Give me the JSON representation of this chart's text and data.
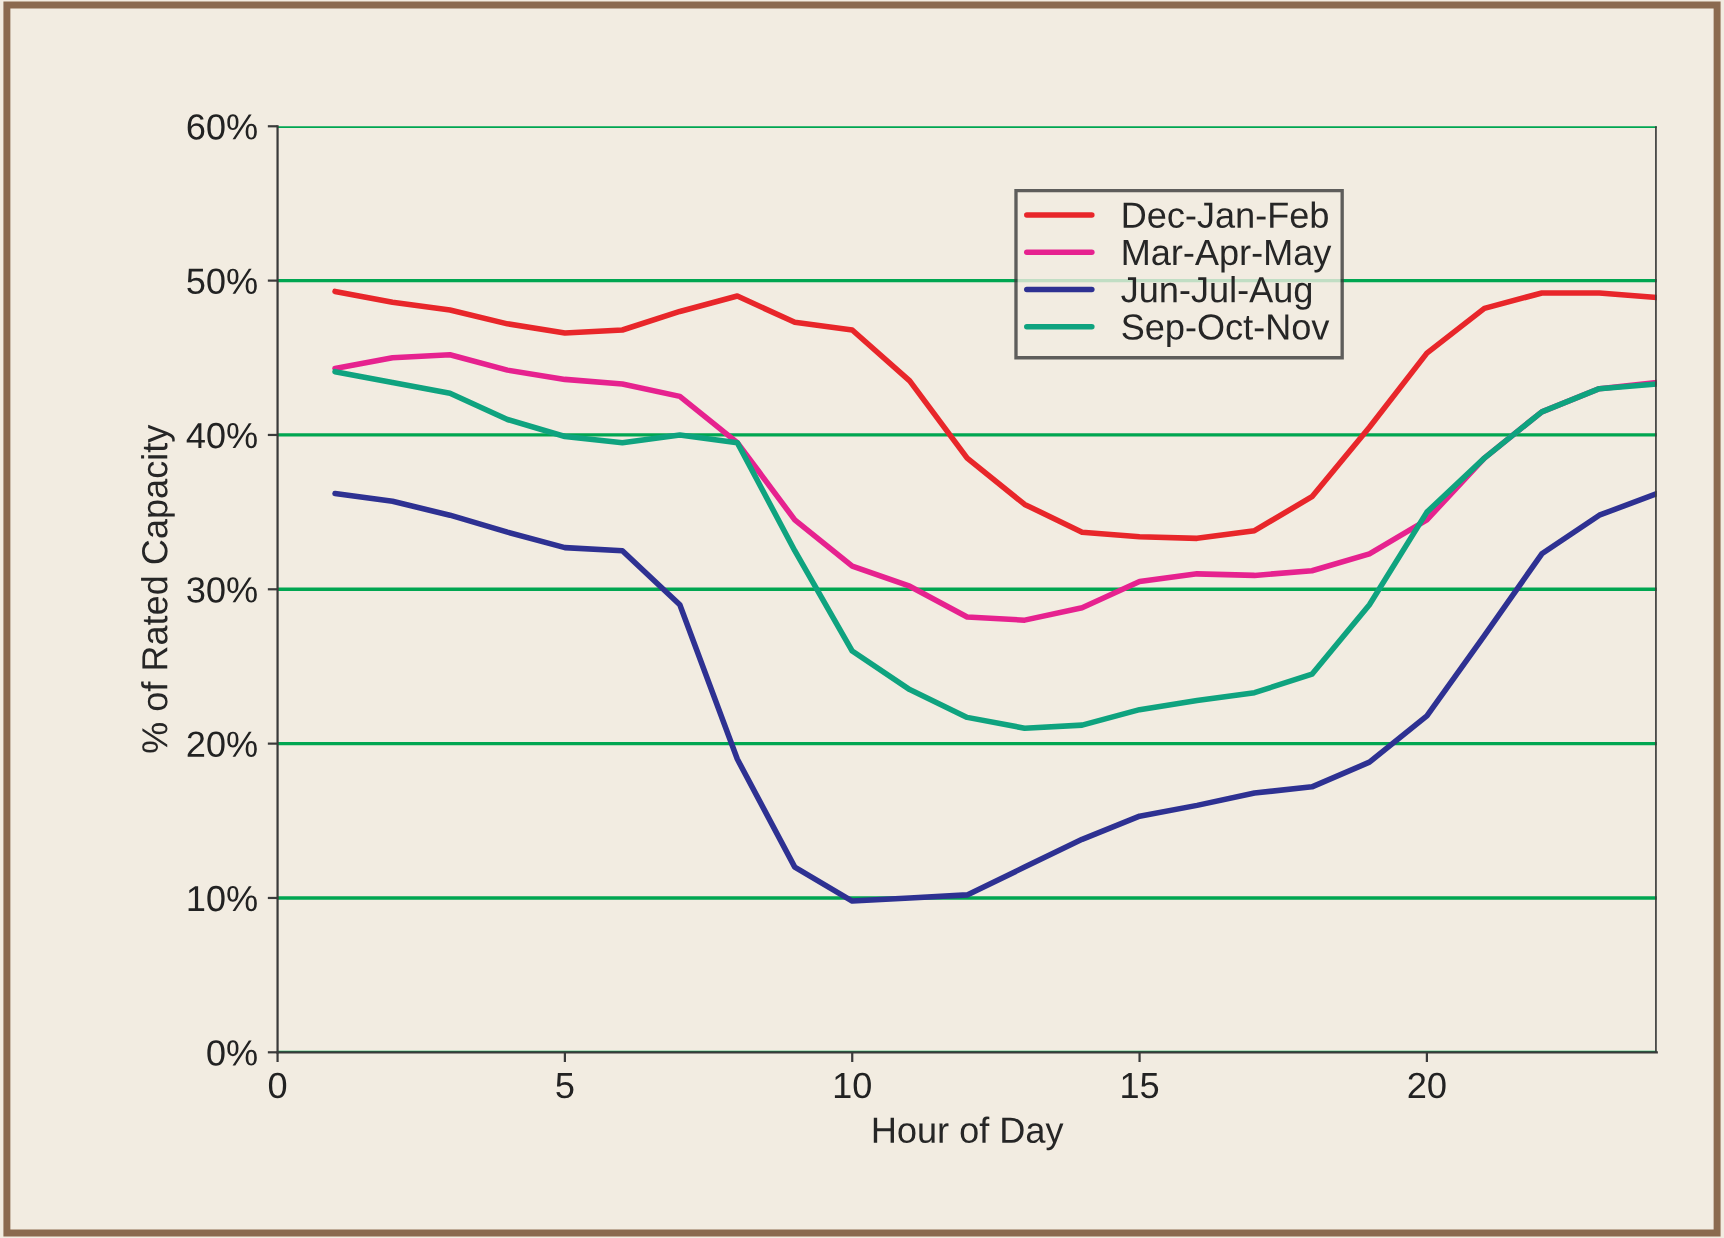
{
  "chart_data": {
    "type": "line",
    "xlabel": "Hour of Day",
    "ylabel": "% of Rated Capacity",
    "x": [
      1,
      2,
      3,
      4,
      5,
      6,
      7,
      8,
      9,
      10,
      11,
      12,
      13,
      14,
      15,
      16,
      17,
      18,
      19,
      20,
      21,
      22,
      23,
      24
    ],
    "series": [
      {
        "name": "Dec-Jan-Feb",
        "color": "#e8262a",
        "values": [
          49.3,
          48.6,
          48.1,
          47.2,
          46.6,
          46.8,
          48.0,
          49.0,
          47.3,
          46.8,
          43.5,
          38.5,
          35.5,
          33.7,
          33.4,
          33.3,
          33.8,
          36.0,
          40.5,
          45.3,
          48.2,
          49.2,
          49.2,
          48.9
        ]
      },
      {
        "name": "Mar-Apr-May",
        "color": "#e6228f",
        "values": [
          44.3,
          45.0,
          45.2,
          44.2,
          43.6,
          43.3,
          42.5,
          39.5,
          34.5,
          31.5,
          30.2,
          28.2,
          28.0,
          28.8,
          30.5,
          31.0,
          30.9,
          31.2,
          32.3,
          34.5,
          38.5,
          41.5,
          43.0,
          43.4
        ]
      },
      {
        "name": "Jun-Jul-Aug",
        "color": "#2e3192",
        "values": [
          36.2,
          35.7,
          34.8,
          33.7,
          32.7,
          32.5,
          29.0,
          19.0,
          12.0,
          9.8,
          10.0,
          10.2,
          12.0,
          13.8,
          15.3,
          16.0,
          16.8,
          17.2,
          18.8,
          21.8,
          27.0,
          32.3,
          34.8,
          36.2
        ]
      },
      {
        "name": "Sep-Oct-Nov",
        "color": "#0fa37f",
        "values": [
          44.1,
          43.4,
          42.7,
          41.0,
          39.9,
          39.5,
          40.0,
          39.5,
          32.5,
          26.0,
          23.5,
          21.7,
          21.0,
          21.2,
          22.2,
          22.8,
          23.3,
          24.5,
          29.0,
          35.0,
          38.5,
          41.5,
          43.0,
          43.3
        ]
      }
    ],
    "xlim": [
      0,
      24
    ],
    "xticks": [
      0,
      5,
      10,
      15,
      20
    ],
    "ylim": [
      0,
      60
    ],
    "yticks": [
      {
        "value": 0,
        "label": "0%"
      },
      {
        "value": 10,
        "label": "10%"
      },
      {
        "value": 20,
        "label": "20%"
      },
      {
        "value": 30,
        "label": "30%"
      },
      {
        "value": 40,
        "label": "40%"
      },
      {
        "value": 50,
        "label": "50%"
      },
      {
        "value": 60,
        "label": "60%"
      }
    ],
    "grid": "y",
    "legend": "top right",
    "marker": "none",
    "line_style": "solid"
  }
}
